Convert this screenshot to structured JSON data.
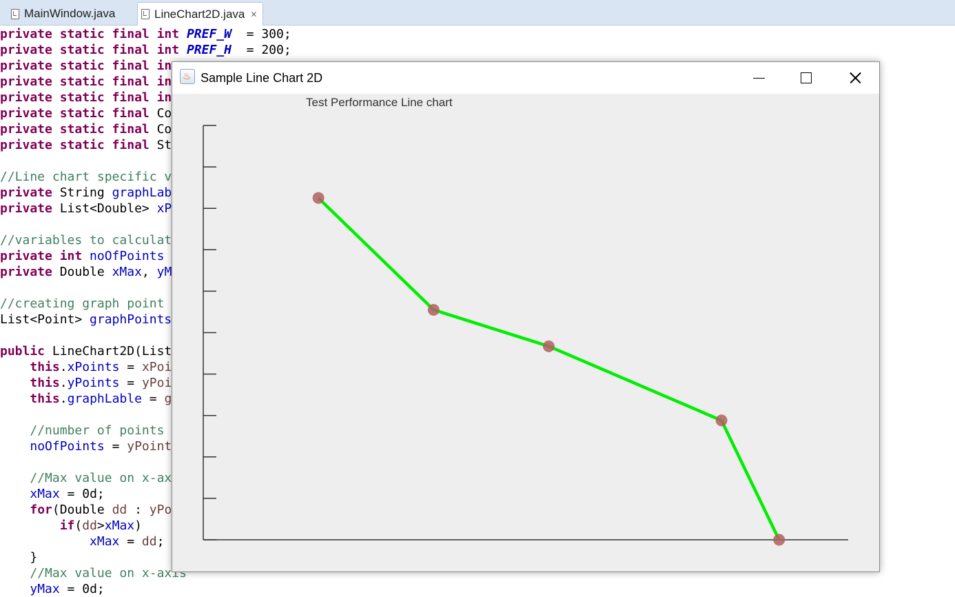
{
  "tabs": [
    {
      "label": "MainWindow.java"
    },
    {
      "label": "LineChart2D.java",
      "close_glyph": "✕"
    }
  ],
  "code_lines": [
    [
      [
        "kw",
        "private static final int "
      ],
      [
        "sf",
        "PREF_W"
      ],
      [
        "",
        "  = 300;"
      ]
    ],
    [
      [
        "kw",
        "private static final int "
      ],
      [
        "sf",
        "PREF_H"
      ],
      [
        "",
        "  = 200;"
      ]
    ],
    [
      [
        "kw",
        "private static final in"
      ]
    ],
    [
      [
        "kw",
        "private static final in"
      ]
    ],
    [
      [
        "kw",
        "private static final in"
      ]
    ],
    [
      [
        "kw",
        "private static final "
      ],
      [
        "",
        "Co"
      ]
    ],
    [
      [
        "kw",
        "private static final "
      ],
      [
        "",
        "Co"
      ]
    ],
    [
      [
        "kw",
        "private static final "
      ],
      [
        "",
        "St"
      ]
    ],
    [],
    [
      [
        "cm",
        "//Line chart specific v"
      ]
    ],
    [
      [
        "kw",
        "private "
      ],
      [
        "",
        "String "
      ],
      [
        "fd",
        "graphLab"
      ]
    ],
    [
      [
        "kw",
        "private "
      ],
      [
        "",
        "List<Double> "
      ],
      [
        "fd",
        "xP"
      ]
    ],
    [],
    [
      [
        "cm",
        "//variables to calculat"
      ]
    ],
    [
      [
        "kw",
        "private int "
      ],
      [
        "fd",
        "noOfPoints"
      ]
    ],
    [
      [
        "kw",
        "private "
      ],
      [
        "",
        "Double "
      ],
      [
        "fd",
        "xMax"
      ],
      [
        "",
        ", "
      ],
      [
        "fd",
        "yM"
      ]
    ],
    [],
    [
      [
        "cm",
        "//creating graph point"
      ]
    ],
    [
      [
        "",
        "List<Point> "
      ],
      [
        "fd",
        "graphPoints"
      ]
    ],
    [],
    [
      [
        "kw",
        "public "
      ],
      [
        "",
        "LineChart2D(List"
      ]
    ],
    [
      [
        "",
        "    "
      ],
      [
        "kw",
        "this"
      ],
      [
        "",
        "."
      ],
      [
        "fd",
        "xPoints"
      ],
      [
        "",
        " = "
      ],
      [
        "lv",
        "xPoi"
      ]
    ],
    [
      [
        "",
        "    "
      ],
      [
        "kw",
        "this"
      ],
      [
        "",
        "."
      ],
      [
        "fd",
        "yPoints"
      ],
      [
        "",
        " = "
      ],
      [
        "lv",
        "yPoi"
      ]
    ],
    [
      [
        "",
        "    "
      ],
      [
        "kw",
        "this"
      ],
      [
        "",
        "."
      ],
      [
        "fd",
        "graphLable"
      ],
      [
        "",
        " = "
      ],
      [
        "lv",
        "g"
      ]
    ],
    [],
    [
      [
        "",
        "    "
      ],
      [
        "cm",
        "//number of points"
      ]
    ],
    [
      [
        "",
        "    "
      ],
      [
        "fd",
        "noOfPoints"
      ],
      [
        "",
        " = "
      ],
      [
        "lv",
        "yPoint"
      ]
    ],
    [],
    [
      [
        "",
        "    "
      ],
      [
        "cm",
        "//Max value on x-ax"
      ]
    ],
    [
      [
        "",
        "    "
      ],
      [
        "fd",
        "xMax"
      ],
      [
        "",
        " = 0d;"
      ]
    ],
    [
      [
        "",
        "    "
      ],
      [
        "kw",
        "for"
      ],
      [
        "",
        "(Double "
      ],
      [
        "lv",
        "dd"
      ],
      [
        "",
        " : "
      ],
      [
        "lv",
        "yPo"
      ]
    ],
    [
      [
        "",
        "        "
      ],
      [
        "kw",
        "if"
      ],
      [
        "",
        "("
      ],
      [
        "lv",
        "dd"
      ],
      [
        "",
        ">"
      ],
      [
        "fd",
        "xMax"
      ],
      [
        "",
        ")"
      ]
    ],
    [
      [
        "",
        "            "
      ],
      [
        "fd",
        "xMax"
      ],
      [
        "",
        " = "
      ],
      [
        "lv",
        "dd"
      ],
      [
        "",
        ";"
      ]
    ],
    [
      [
        "",
        "    }"
      ]
    ],
    [
      [
        "",
        "    "
      ],
      [
        "cm",
        "//Max value on x-axis"
      ]
    ],
    [
      [
        "",
        "    "
      ],
      [
        "fd",
        "yMax"
      ],
      [
        "",
        " = 0d;"
      ]
    ]
  ],
  "window": {
    "title": "Sample Line Chart 2D"
  },
  "chart_data": {
    "type": "line",
    "title": "Test Performance Line chart",
    "xlabel": "",
    "ylabel": "",
    "ylim": [
      0,
      10
    ],
    "y_ticks": 10,
    "grid": false,
    "series": [
      {
        "x": [
          2.0,
          4.0,
          6.0,
          9.0,
          10.0
        ],
        "values": [
          8.25,
          5.55,
          4.67,
          2.88,
          0.0
        ]
      }
    ],
    "line_color": "#00ee00",
    "marker_color": "#b05f5f",
    "axis_color": "#333333"
  }
}
